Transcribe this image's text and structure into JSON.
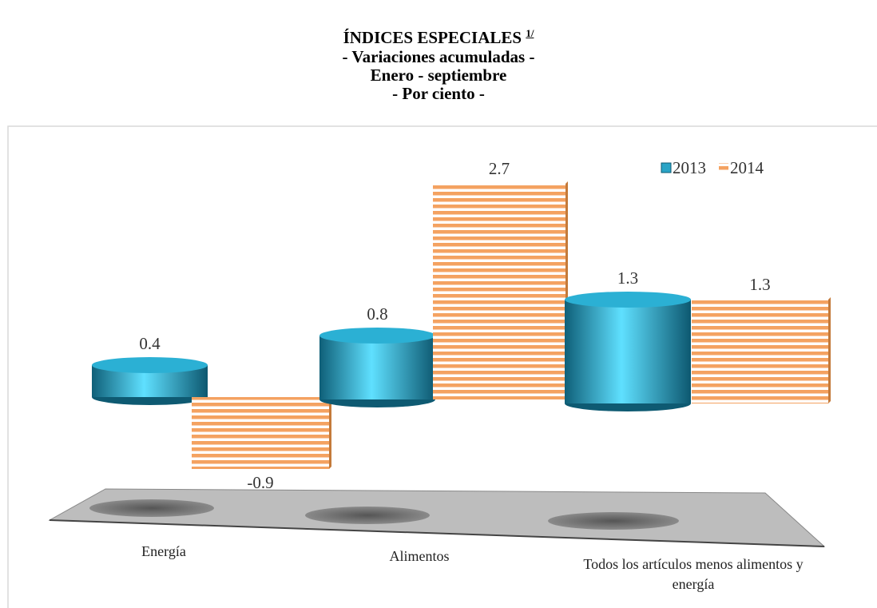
{
  "chart_data": {
    "type": "bar3d",
    "title": "ÍNDICES ESPECIALES",
    "title_note": "1/",
    "subtitles": [
      "- Variaciones acumuladas -",
      "Enero - septiembre",
      "- Por ciento -"
    ],
    "categories": [
      "Energía",
      "Alimentos",
      "Todos los artículos menos alimentos y energía"
    ],
    "series": [
      {
        "name": "2013",
        "color": "#2aa4c6",
        "values": [
          0.4,
          0.8,
          1.3
        ]
      },
      {
        "name": "2014",
        "color": "#f4a261",
        "values": [
          -0.9,
          2.7,
          1.3
        ]
      }
    ],
    "legend": "top-right"
  }
}
